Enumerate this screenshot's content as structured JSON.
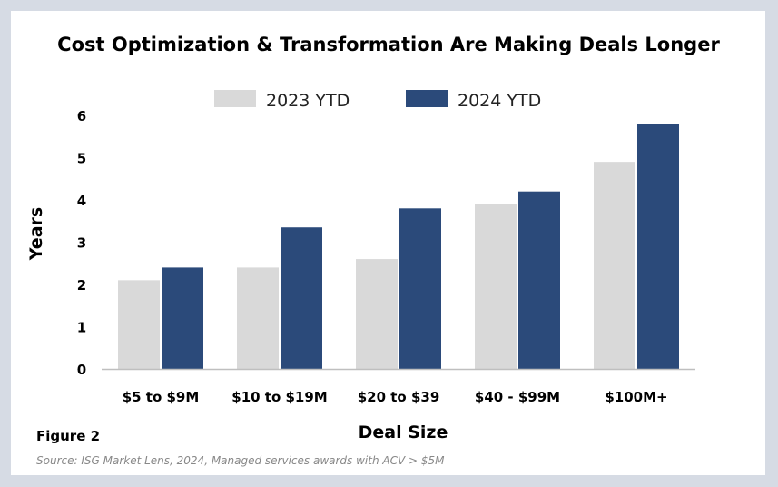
{
  "chart_data": {
    "type": "bar",
    "title": "Cost Optimization & Transformation Are Making Deals Longer",
    "xlabel": "Deal Size",
    "ylabel": "Years",
    "categories": [
      "$5 to $9M",
      "$10 to $19M",
      "$20 to $39",
      "$40 - $99M",
      "$100M+"
    ],
    "series": [
      {
        "name": "2023 YTD",
        "color": "#d9d9d9",
        "values": [
          2.1,
          2.4,
          2.6,
          3.9,
          4.9
        ]
      },
      {
        "name": "2024 YTD",
        "color": "#2b4a7a",
        "values": [
          2.4,
          3.35,
          3.8,
          4.2,
          5.8
        ]
      }
    ],
    "ylim": [
      0,
      6
    ],
    "yticks": [
      "0",
      "1",
      "2",
      "3",
      "4",
      "5",
      "6"
    ],
    "grid": false,
    "legend": "top-center"
  },
  "figure_label": "Figure 2",
  "source": "Source: ISG Market Lens, 2024, Managed services awards with ACV > $5M"
}
